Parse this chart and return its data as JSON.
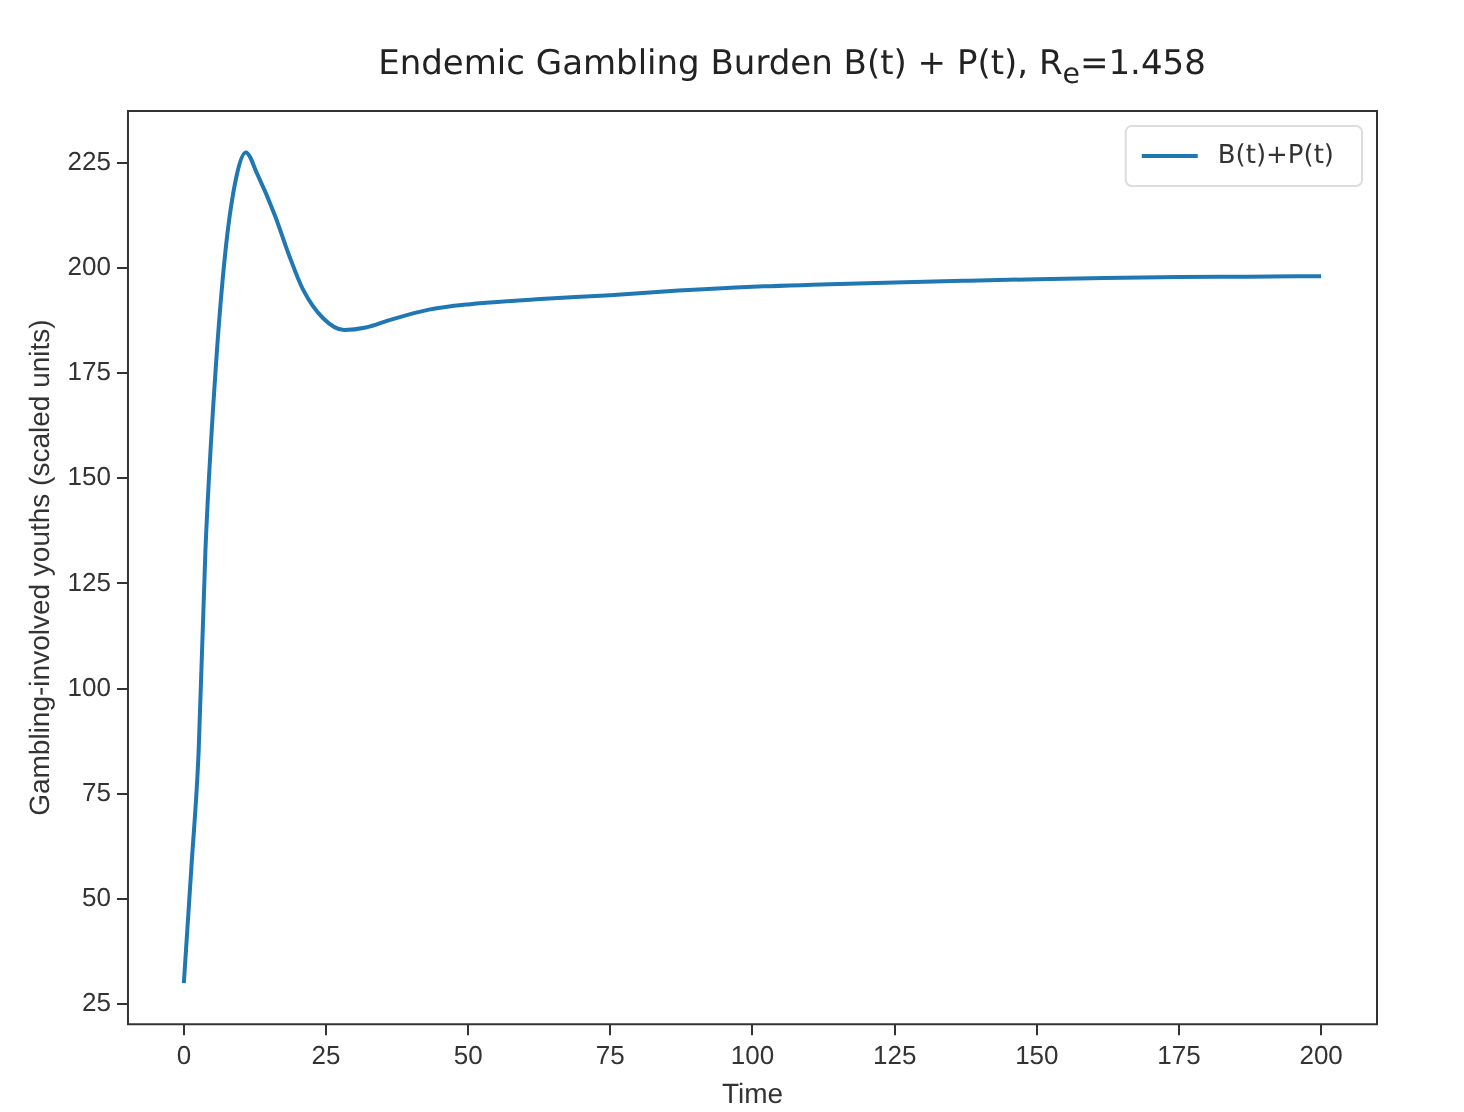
{
  "chart_data": {
    "type": "line",
    "title": "Endemic Gambling Burden B(t) + P(t), R$_{e}$=1.458",
    "xlabel": "Time",
    "ylabel": "Gambling-involved youths (scaled units)",
    "xlim": [
      -10,
      210
    ],
    "xticks": [
      0,
      25,
      50,
      75,
      100,
      125,
      150,
      175,
      200
    ],
    "ylim": [
      20,
      237.5
    ],
    "yticks": [
      25,
      50,
      75,
      100,
      125,
      150,
      175,
      200,
      225
    ],
    "grid": false,
    "legend": "top right",
    "marker": "none",
    "line_style": "solid",
    "series": [
      {
        "name": "B(t)+P(t)",
        "color": "#1f77b4",
        "x": [
          0,
          1.3,
          2.6,
          3.8,
          5.6,
          7.4,
          9.3,
          10.9,
          13,
          16,
          18.5,
          20.9,
          24.5,
          28.2,
          32,
          36,
          42.9,
          50,
          62,
          75,
          87,
          100,
          112,
          125,
          137,
          150,
          162,
          175,
          187,
          200
        ],
        "values": [
          30,
          57,
          85,
          133,
          176,
          205,
          222,
          227.4,
          222,
          212.5,
          203,
          195,
          188,
          185.2,
          185.8,
          187.5,
          190,
          191.3,
          192.5,
          193.5,
          194.6,
          195.5,
          196,
          196.5,
          196.9,
          197.3,
          197.6,
          197.8,
          197.9,
          198
        ]
      }
    ]
  }
}
